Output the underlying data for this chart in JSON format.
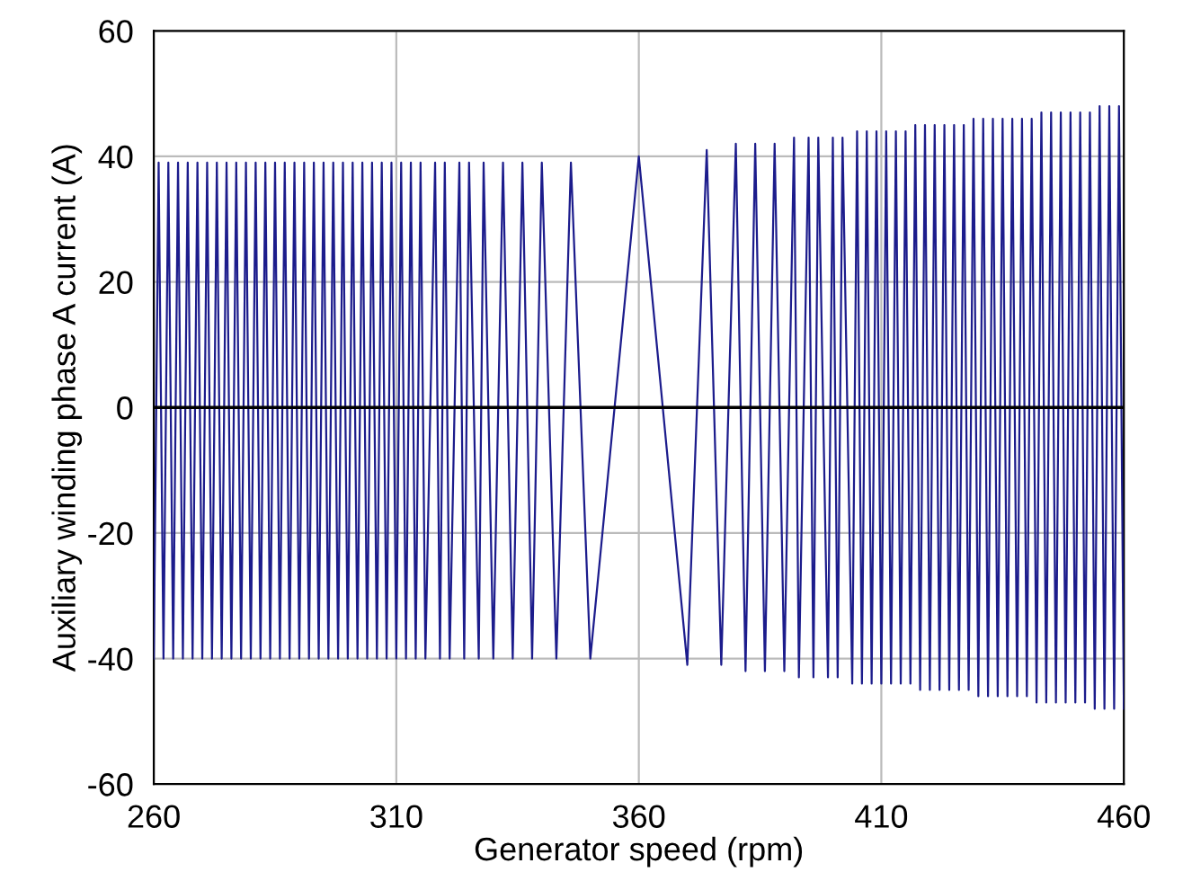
{
  "chart_data": {
    "type": "line",
    "xlabel": "Generator speed (rpm)",
    "ylabel": "Auxiliary winding phase A current (A)",
    "xlim": [
      260,
      460
    ],
    "xticks": [
      260,
      310,
      360,
      410,
      460
    ],
    "ylim": [
      -60,
      60
    ],
    "yticks": [
      -60,
      -40,
      -20,
      0,
      20,
      40,
      60
    ],
    "grid": true,
    "legend": false,
    "marker": "none",
    "line_style": "solid",
    "ref_lines": [
      {
        "axis": "y",
        "value": 0,
        "color": "#000000"
      }
    ],
    "series": [
      {
        "color": "#1c1c8c",
        "x": [
          260,
          261,
          262,
          263,
          264,
          265,
          266,
          267,
          268,
          269,
          270,
          271,
          272,
          273,
          274,
          275,
          276,
          277,
          278,
          279,
          280,
          281,
          282,
          283,
          284,
          285,
          286,
          287,
          288,
          289,
          290,
          291,
          292,
          293,
          294,
          295,
          296,
          297,
          298,
          299,
          300,
          301,
          302,
          303,
          304,
          305,
          306,
          307,
          308,
          309,
          310,
          311,
          312,
          313,
          314,
          315,
          316,
          318,
          319,
          320,
          321,
          323,
          324,
          325,
          327,
          328,
          330,
          332,
          334,
          336,
          338,
          340,
          343,
          346,
          350,
          360,
          370,
          374,
          377,
          380,
          382,
          384,
          386,
          388,
          390,
          392,
          393,
          395,
          396,
          397,
          399,
          400,
          401,
          402,
          404,
          405,
          406,
          407,
          408,
          409,
          410,
          411,
          412,
          413,
          414,
          415,
          416,
          417,
          418,
          419,
          420,
          421,
          422,
          423,
          424,
          425,
          426,
          427,
          428,
          429,
          430,
          431,
          432,
          433,
          434,
          435,
          436,
          437,
          438,
          439,
          440,
          441,
          442,
          443,
          444,
          445,
          446,
          447,
          448,
          449,
          450,
          451,
          452,
          453,
          454,
          455,
          456,
          457,
          458,
          459,
          460
        ],
        "values": [
          -40,
          39,
          -40,
          39,
          -40,
          39,
          -40,
          39,
          -40,
          39,
          -40,
          39,
          -40,
          39,
          -40,
          39,
          -40,
          39,
          -40,
          39,
          -40,
          39,
          -40,
          39,
          -40,
          39,
          -40,
          39,
          -40,
          39,
          -40,
          39,
          -40,
          39,
          -40,
          39,
          -40,
          39,
          -40,
          39,
          -40,
          39,
          -40,
          39,
          -40,
          39,
          -40,
          39,
          -40,
          39,
          -40,
          39,
          -40,
          39,
          -40,
          39,
          -40,
          39,
          -40,
          39,
          -40,
          39,
          -40,
          39,
          -40,
          39,
          -40,
          39,
          -40,
          39,
          -40,
          39,
          -40,
          39,
          -40,
          40,
          -41,
          41,
          -41,
          42,
          -42,
          42,
          -42,
          42,
          -42,
          43,
          -43,
          43,
          -43,
          43,
          -43,
          43,
          -43,
          43,
          -44,
          44,
          -44,
          44,
          -44,
          44,
          -44,
          44,
          -44,
          44,
          -44,
          44,
          -44,
          45,
          -45,
          45,
          -45,
          45,
          -45,
          45,
          -45,
          45,
          -45,
          45,
          -45,
          46,
          -46,
          46,
          -46,
          46,
          -46,
          46,
          -46,
          46,
          -46,
          46,
          -46,
          46,
          -47,
          47,
          -47,
          47,
          -47,
          47,
          -47,
          47,
          -47,
          47,
          -47,
          47,
          -48,
          48,
          -48,
          48,
          -48,
          48,
          -48
        ]
      }
    ]
  }
}
